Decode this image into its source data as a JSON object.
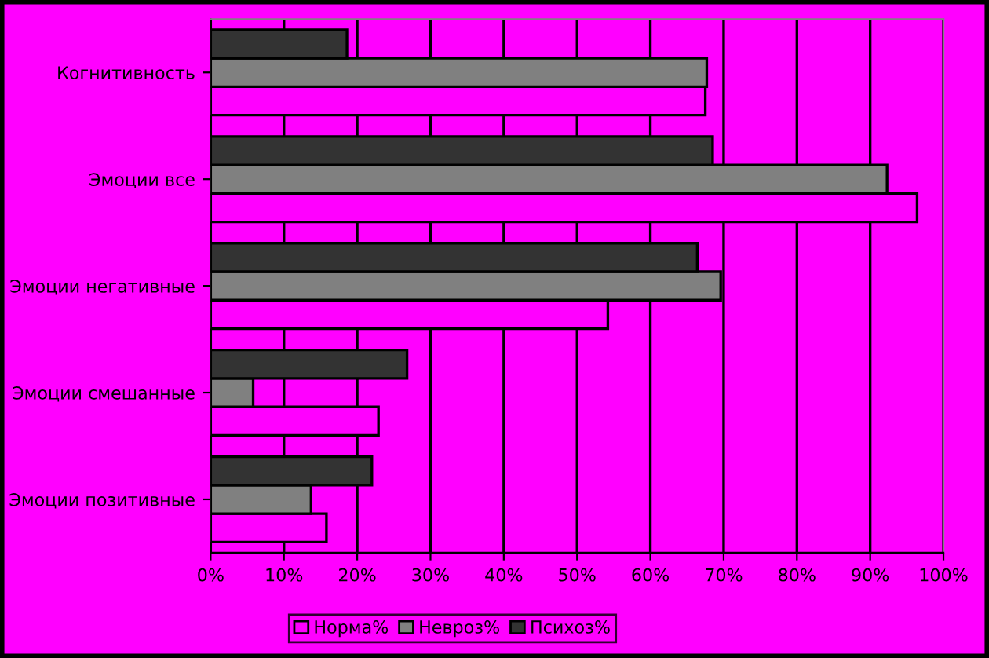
{
  "chart_data": {
    "type": "bar",
    "orientation": "horizontal",
    "categories": [
      "Когнитивность",
      "Эмоции все",
      "Эмоции негативные",
      "Эмоции смешанные",
      "Эмоции позитивные"
    ],
    "series": [
      {
        "name": "Норма%",
        "color": "#ff00ff",
        "values": [
          67.5,
          96.4,
          54.2,
          22.9,
          15.8
        ]
      },
      {
        "name": "Невроз%",
        "color": "#808080",
        "values": [
          67.7,
          92.3,
          69.6,
          5.8,
          13.7
        ]
      },
      {
        "name": "Психоз%",
        "color": "#333333",
        "values": [
          18.6,
          68.5,
          66.4,
          26.8,
          22
        ]
      }
    ],
    "xlim": [
      0,
      100
    ],
    "xticks": [
      {
        "value": 0,
        "label": "0%"
      },
      {
        "value": 10,
        "label": "10%"
      },
      {
        "value": 20,
        "label": "20%"
      },
      {
        "value": 30,
        "label": "30%"
      },
      {
        "value": 40,
        "label": "40%"
      },
      {
        "value": 50,
        "label": "50%"
      },
      {
        "value": 60,
        "label": "60%"
      },
      {
        "value": 70,
        "label": "70%"
      },
      {
        "value": 80,
        "label": "80%"
      },
      {
        "value": 90,
        "label": "90%"
      },
      {
        "value": 100,
        "label": "100%"
      }
    ],
    "grid": "x",
    "legend": "bottom"
  }
}
